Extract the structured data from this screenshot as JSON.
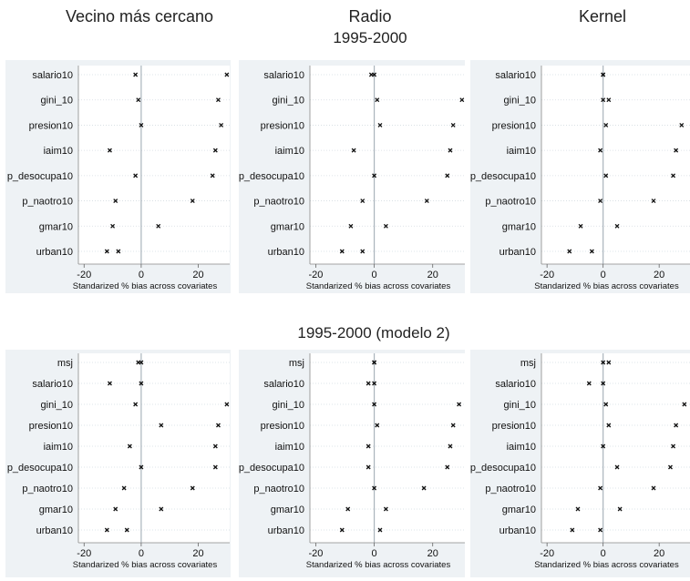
{
  "column_titles": [
    "Vecino más cercano",
    "Radio",
    "Kernel"
  ],
  "period_title_top": "1995-2000",
  "period_title_bottom": "1995-2000 (modelo 2)",
  "colors": {
    "panel_bg": "#eef2f5",
    "grid": "#d4dbe1",
    "zero_line": "#aab4bc",
    "marker": "#111111"
  },
  "chart_data": [
    {
      "type": "scatter",
      "row": "top",
      "column": "Vecino más cercano",
      "xlabel": "Standarized % bias across covariates",
      "xticks": [
        -20,
        0,
        20
      ],
      "xlim": [
        -22,
        31
      ],
      "categories": [
        "salario10",
        "gini_10",
        "presion10",
        "iaim10",
        "p_desocupa10",
        "p_naotro10",
        "gmar10",
        "urban10"
      ],
      "points": [
        [
          -2,
          30
        ],
        [
          -1,
          27
        ],
        [
          0,
          28
        ],
        [
          -11,
          26
        ],
        [
          -2,
          25
        ],
        [
          -9,
          18
        ],
        [
          -10,
          6
        ],
        [
          -12,
          -8
        ]
      ]
    },
    {
      "type": "scatter",
      "row": "top",
      "column": "Radio",
      "xlabel": "Standarized % bias across covariates",
      "xticks": [
        -20,
        0,
        20
      ],
      "xlim": [
        -22,
        31
      ],
      "categories": [
        "salario10",
        "gini_10",
        "presion10",
        "iaim10",
        "p_desocupa10",
        "p_naotro10",
        "gmar10",
        "urban10"
      ],
      "points": [
        [
          -1,
          0
        ],
        [
          1,
          30
        ],
        [
          2,
          27
        ],
        [
          -7,
          26
        ],
        [
          0,
          25
        ],
        [
          -4,
          18
        ],
        [
          -8,
          4
        ],
        [
          -11,
          -4
        ]
      ]
    },
    {
      "type": "scatter",
      "row": "top",
      "column": "Kernel",
      "xlabel": "Standarized % bias across covariates",
      "xticks": [
        -20,
        0,
        20
      ],
      "xlim": [
        -22,
        31
      ],
      "categories": [
        "salario10",
        "gini_10",
        "presion10",
        "iaim10",
        "p_desocupa10",
        "p_naotro10",
        "gmar10",
        "urban10"
      ],
      "points": [
        [
          0,
          0
        ],
        [
          2,
          0
        ],
        [
          1,
          28
        ],
        [
          -1,
          26
        ],
        [
          1,
          25
        ],
        [
          -1,
          18
        ],
        [
          -8,
          5
        ],
        [
          -12,
          -4
        ]
      ]
    },
    {
      "type": "scatter",
      "row": "bottom",
      "column": "Vecino más cercano",
      "xlabel": "Standarized % bias across covariates",
      "xticks": [
        -20,
        0,
        20
      ],
      "xlim": [
        -22,
        31
      ],
      "categories": [
        "msj",
        "salario10",
        "gini_10",
        "presion10",
        "iaim10",
        "p_desocupa10",
        "p_naotro10",
        "gmar10",
        "urban10"
      ],
      "points": [
        [
          -1,
          0
        ],
        [
          -11,
          0
        ],
        [
          -2,
          30
        ],
        [
          7,
          27
        ],
        [
          -4,
          26
        ],
        [
          0,
          26
        ],
        [
          -6,
          18
        ],
        [
          -9,
          7
        ],
        [
          -12,
          -5
        ]
      ]
    },
    {
      "type": "scatter",
      "row": "bottom",
      "column": "Radio",
      "xlabel": "Standarized % bias across covariates",
      "xticks": [
        -20,
        0,
        20
      ],
      "xlim": [
        -22,
        31
      ],
      "categories": [
        "msj",
        "salario10",
        "gini_10",
        "presion10",
        "iaim10",
        "p_desocupa10",
        "p_naotro10",
        "gmar10",
        "urban10"
      ],
      "points": [
        [
          0,
          0
        ],
        [
          -2,
          0
        ],
        [
          0,
          29
        ],
        [
          1,
          27
        ],
        [
          -2,
          26
        ],
        [
          -2,
          25
        ],
        [
          0,
          17
        ],
        [
          -9,
          4
        ],
        [
          -11,
          2
        ]
      ]
    },
    {
      "type": "scatter",
      "row": "bottom",
      "column": "Kernel",
      "xlabel": "Standarized % bias across covariates",
      "xticks": [
        -20,
        0,
        20
      ],
      "xlim": [
        -22,
        31
      ],
      "categories": [
        "msj",
        "salario10",
        "gini_10",
        "presion10",
        "iaim10",
        "p_desocupa10",
        "p_naotro10",
        "gmar10",
        "urban10"
      ],
      "points": [
        [
          2,
          0
        ],
        [
          -5,
          0
        ],
        [
          1,
          29
        ],
        [
          2,
          26
        ],
        [
          0,
          25
        ],
        [
          5,
          24
        ],
        [
          -1,
          18
        ],
        [
          -9,
          6
        ],
        [
          -11,
          -1
        ]
      ]
    }
  ]
}
